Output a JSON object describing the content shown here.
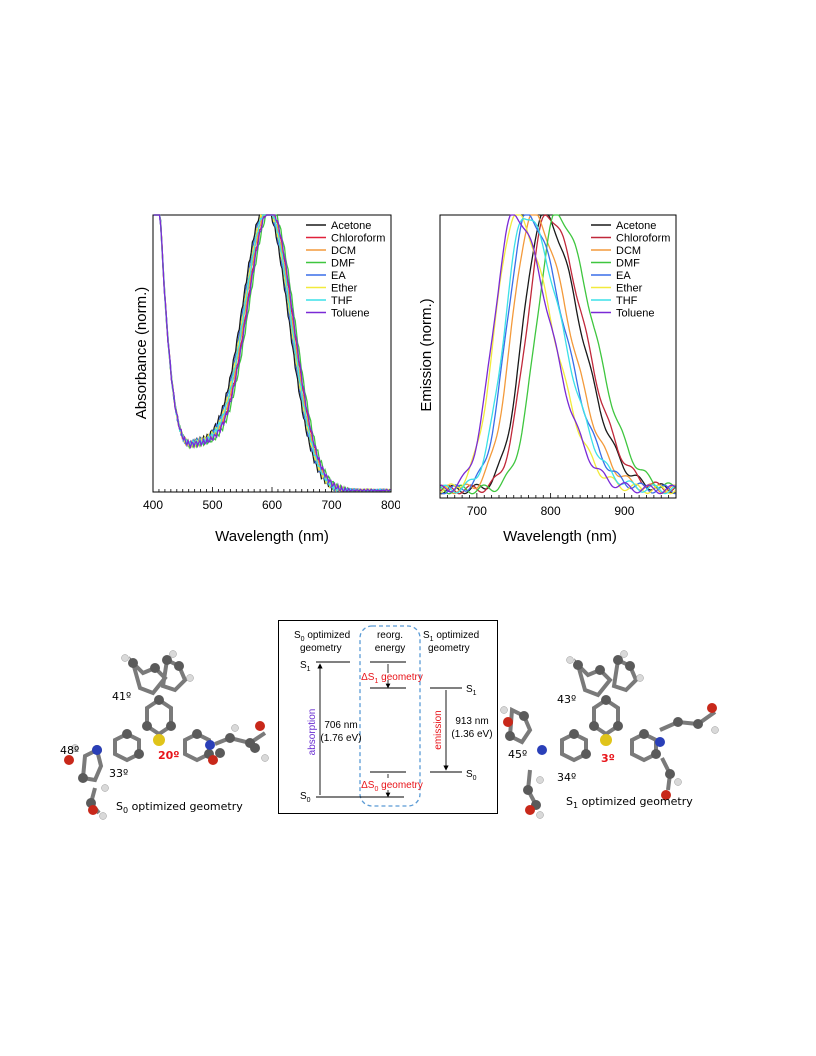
{
  "chart_data": [
    {
      "type": "line",
      "ylabel": "Absorbance (norm.)",
      "xlabel": "Wavelength (nm)",
      "xlim": [
        400,
        800
      ],
      "xticks": [
        400,
        500,
        600,
        700,
        800
      ],
      "ylim": [
        0,
        1
      ],
      "legend": "top-right",
      "series": [
        {
          "name": "Acetone",
          "color": "#1a1a1a",
          "peak": 590,
          "width_left": 58,
          "width_right": 58,
          "x": [
            410,
            430,
            450,
            470,
            490,
            510,
            540,
            570,
            590,
            620,
            650,
            680,
            710,
            740,
            770,
            800
          ],
          "y": [
            1.0,
            0.35,
            0.18,
            0.18,
            0.19,
            0.3,
            0.62,
            0.93,
            1.0,
            0.92,
            0.67,
            0.37,
            0.14,
            0.04,
            0.01,
            0.0
          ]
        },
        {
          "name": "Chloroform",
          "color": "#e0213a",
          "peak": 597
        },
        {
          "name": "DCM",
          "color": "#f39a3b",
          "peak": 595
        },
        {
          "name": "DMF",
          "color": "#3fc63f",
          "peak": 600
        },
        {
          "name": "EA",
          "color": "#3a6ee8",
          "peak": 592
        },
        {
          "name": "Ether",
          "color": "#f2ea3c",
          "peak": 593
        },
        {
          "name": "THF",
          "color": "#3ce0e8",
          "peak": 594
        },
        {
          "name": "Toluene",
          "color": "#7a2ad6",
          "peak": 598
        }
      ]
    },
    {
      "type": "line",
      "ylabel": "Emission (norm.)",
      "xlabel": "Wavelength (nm)",
      "xlim": [
        650,
        970
      ],
      "xticks": [
        700,
        800,
        900
      ],
      "ylim": [
        0,
        1
      ],
      "legend": "top-right",
      "series": [
        {
          "name": "Acetone",
          "color": "#1a1a1a",
          "peak": 790
        },
        {
          "name": "Chloroform",
          "color": "#c0283a",
          "peak": 795
        },
        {
          "name": "DCM",
          "color": "#f39a3b",
          "peak": 775
        },
        {
          "name": "DMF",
          "color": "#3fc63f",
          "peak": 808
        },
        {
          "name": "EA",
          "color": "#3a6ee8",
          "peak": 768
        },
        {
          "name": "Ether",
          "color": "#f2ea3c",
          "peak": 752
        },
        {
          "name": "THF",
          "color": "#3ce0e8",
          "peak": 765
        },
        {
          "name": "Toluene",
          "color": "#7a2ad6",
          "peak": 750
        }
      ]
    }
  ],
  "diagram": {
    "s0_header_line1": "S",
    "s0_header_sub": "0",
    "s0_header_rest": " optimized",
    "s0_header_line2": "geometry",
    "reorg_line1": "reorg.",
    "reorg_line2": "energy",
    "s1_header_sub": "1",
    "s1_header_rest": " optimized",
    "s1_header_line2": "geometry",
    "level_s1_left": "S",
    "level_s1_left_sub": "1",
    "level_s0_left": "S",
    "level_s0_left_sub": "0",
    "level_s1_right_sub": "1",
    "level_s0_right_sub": "0",
    "delta_s1_label": "ΔS",
    "delta_s1_sub": "1",
    "delta_s1_rest": " geometry",
    "delta_s0_label": "ΔS",
    "delta_s0_sub": "0",
    "delta_s0_rest": " geometry",
    "absorption": "absorption",
    "absorption_nm": "706 nm",
    "absorption_ev": "(1.76 eV)",
    "emission": "emission",
    "emission_nm": "913 nm",
    "emission_ev": "(1.36 eV)"
  },
  "molecule_left": {
    "caption_s": "S",
    "caption_sub": "0",
    "caption_rest": " optimized geometry",
    "angle_top": "41º",
    "angle_left": "48º",
    "angle_bottom": "33º",
    "angle_red": "20º"
  },
  "molecule_right": {
    "caption_s": "S",
    "caption_sub": "1",
    "caption_rest": " optimized geometry",
    "angle_top": "43º",
    "angle_left": "45º",
    "angle_bottom": "34º",
    "angle_red": "3º"
  },
  "colors": {
    "absorption": "#6a2fd2",
    "emission": "#e8141a",
    "delta": "#e8141a",
    "dashed_box": "#5b9bd5"
  }
}
